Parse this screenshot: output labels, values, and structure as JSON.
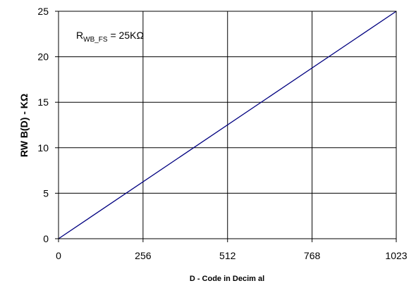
{
  "chart_data": {
    "type": "line",
    "xlabel": "D - Code in Decim al",
    "ylabel": "RW B(D) - KΩ",
    "annotation": {
      "main": "R",
      "subscript": "WB_FS",
      "rest": " = 25KΩ"
    },
    "xlim": [
      0,
      1023
    ],
    "ylim": [
      0,
      25
    ],
    "x_ticks": [
      0,
      256,
      512,
      768,
      1023
    ],
    "x_tick_labels": [
      "0",
      "256",
      "512",
      "768",
      "1023"
    ],
    "y_ticks": [
      0,
      5,
      10,
      15,
      20,
      25
    ],
    "y_tick_labels": [
      "0",
      "5",
      "10",
      "15",
      "20",
      "25"
    ],
    "grid": true,
    "legend": "none",
    "series": [
      {
        "color": "#000080",
        "x": [
          0,
          1023
        ],
        "y": [
          0,
          25
        ]
      }
    ]
  }
}
